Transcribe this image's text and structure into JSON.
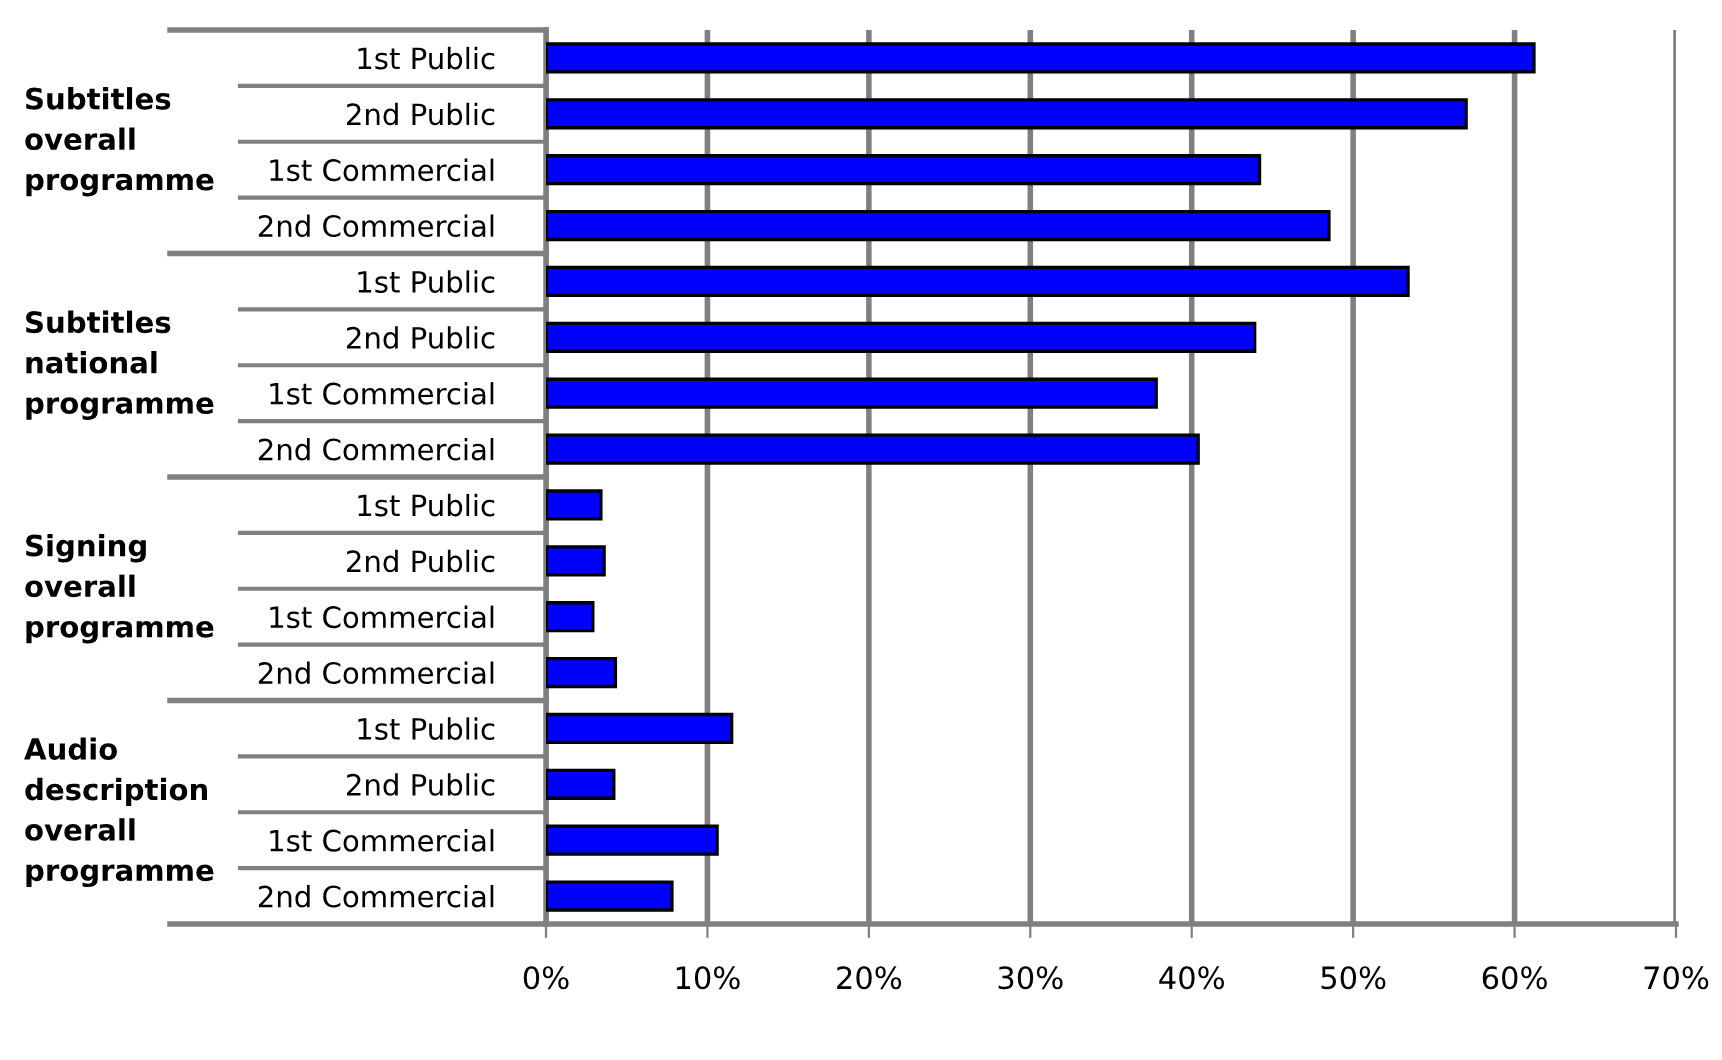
{
  "chart_data": {
    "type": "bar",
    "orientation": "horizontal",
    "categories": [
      "1st Public",
      "2nd Public",
      "1st Commercial",
      "2nd Commercial",
      "1st Public",
      "2nd Public",
      "1st Commercial",
      "2nd Commercial",
      "1st Public",
      "2nd Public",
      "1st Commercial",
      "2nd Commercial",
      "1st Public",
      "2nd Public",
      "1st Commercial",
      "2nd Commercial"
    ],
    "values": [
      61.2,
      57.0,
      44.2,
      48.5,
      53.4,
      43.9,
      37.8,
      40.4,
      3.4,
      3.6,
      2.9,
      4.3,
      11.5,
      4.2,
      10.6,
      7.8
    ],
    "color": "#0000ff",
    "xlim": [
      0,
      70
    ],
    "xticks": [
      {
        "value": 0,
        "label": "0%"
      },
      {
        "value": 10,
        "label": "10%"
      },
      {
        "value": 20,
        "label": "20%"
      },
      {
        "value": 30,
        "label": "30%"
      },
      {
        "value": 40,
        "label": "40%"
      },
      {
        "value": 50,
        "label": "50%"
      },
      {
        "value": 60,
        "label": "60%"
      },
      {
        "value": 70,
        "label": "70%"
      }
    ],
    "grid": "x",
    "legend": false,
    "annotations": [
      "Subtitles\noverall\nprogramme",
      "Subtitles\nnational\nprogramme",
      "Signing\noverall\nprogramme",
      "Audio\ndescription\noverall\nprogramme"
    ]
  }
}
